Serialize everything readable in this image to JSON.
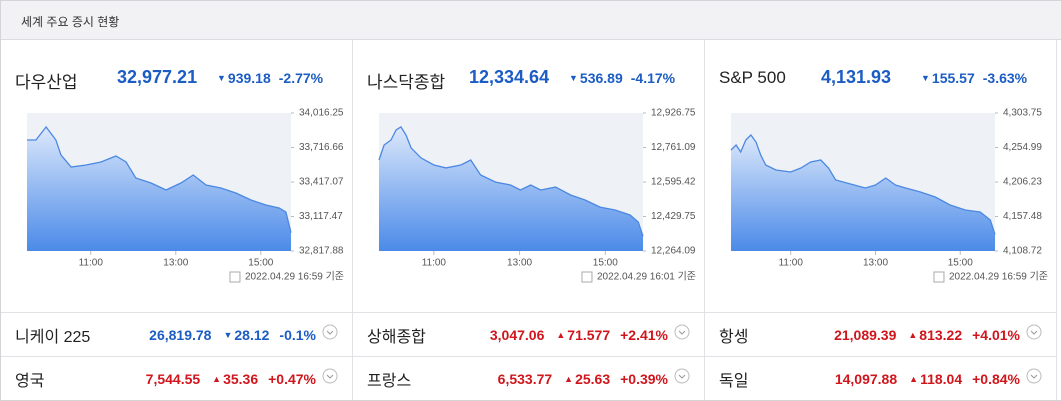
{
  "header": {
    "title": "세계 주요 증시 현황"
  },
  "colors": {
    "up": "#d0161c",
    "down": "#1c5cc5",
    "line": "#4b88e2"
  },
  "panels": [
    {
      "name": "다우산업",
      "value": "32,977.21",
      "change": "939.18",
      "change_pct": "-2.77%",
      "timestamp": "2022.04.29 16:59 기준",
      "chart": {
        "type": "line",
        "x": [
          9.5,
          9.71,
          9.95,
          10.18,
          10.3,
          10.54,
          10.89,
          11.24,
          11.59,
          11.83,
          12.06,
          12.42,
          12.77,
          13.12,
          13.41,
          13.71,
          14.06,
          14.42,
          14.77,
          15.12,
          15.43,
          15.59,
          15.71
        ],
        "values": [
          33782,
          33782,
          33895,
          33782,
          33651,
          33547,
          33565,
          33591,
          33643,
          33591,
          33452,
          33408,
          33348,
          33408,
          33478,
          33391,
          33365,
          33321,
          33261,
          33217,
          33191,
          33156,
          32977
        ],
        "xlim": [
          9.5,
          15.71
        ],
        "ylim": [
          32817.88,
          34016.25
        ],
        "xticks": [
          {
            "value": 11,
            "label": "11:00"
          },
          {
            "value": 13,
            "label": "13:00"
          },
          {
            "value": 15,
            "label": "15:00"
          }
        ],
        "yticks": [
          {
            "value": 34016.25,
            "label": "34,016.25"
          },
          {
            "value": 33716.66,
            "label": "33,716.66"
          },
          {
            "value": 33417.07,
            "label": "33,417.07"
          },
          {
            "value": 33117.47,
            "label": "33,117.47"
          },
          {
            "value": 32817.88,
            "label": "32,817.88"
          }
        ]
      }
    },
    {
      "name": "나스닥종합",
      "value": "12,334.64",
      "change": "536.89",
      "change_pct": "-4.17%",
      "timestamp": "2022.04.29 16:01 기준",
      "chart": {
        "type": "line",
        "x": [
          9.72,
          9.84,
          10.0,
          10.12,
          10.23,
          10.35,
          10.47,
          10.7,
          11.0,
          11.28,
          11.63,
          11.86,
          12.09,
          12.44,
          12.79,
          13.02,
          13.26,
          13.49,
          13.84,
          14.19,
          14.53,
          14.88,
          15.23,
          15.58,
          15.77,
          15.88
        ],
        "values": [
          12701,
          12773,
          12797,
          12845,
          12860,
          12821,
          12759,
          12711,
          12677,
          12663,
          12677,
          12701,
          12629,
          12595,
          12581,
          12557,
          12581,
          12557,
          12571,
          12533,
          12509,
          12475,
          12461,
          12437,
          12403,
          12335
        ],
        "xlim": [
          9.72,
          15.88
        ],
        "ylim": [
          12264.09,
          12926.75
        ],
        "xticks": [
          {
            "value": 11,
            "label": "11:00"
          },
          {
            "value": 13,
            "label": "13:00"
          },
          {
            "value": 15,
            "label": "15:00"
          }
        ],
        "yticks": [
          {
            "value": 12926.75,
            "label": "12,926.75"
          },
          {
            "value": 12761.09,
            "label": "12,761.09"
          },
          {
            "value": 12595.42,
            "label": "12,595.42"
          },
          {
            "value": 12429.75,
            "label": "12,429.75"
          },
          {
            "value": 12264.09,
            "label": "12,264.09"
          }
        ]
      }
    },
    {
      "name": "S&P 500",
      "value": "4,131.93",
      "change": "155.57",
      "change_pct": "-3.63%",
      "timestamp": "2022.04.29 16:59 기준",
      "chart": {
        "type": "line",
        "x": [
          9.59,
          9.71,
          9.82,
          9.94,
          10.06,
          10.18,
          10.29,
          10.41,
          10.65,
          11.0,
          11.24,
          11.47,
          11.71,
          11.89,
          12.06,
          12.41,
          12.76,
          13.0,
          13.24,
          13.47,
          13.71,
          14.06,
          14.41,
          14.76,
          15.12,
          15.47,
          15.71,
          15.82
        ],
        "values": [
          4251.5,
          4258.5,
          4248.6,
          4265.6,
          4272.7,
          4262.8,
          4244.4,
          4230.3,
          4223.2,
          4220.4,
          4226.0,
          4234.5,
          4237.3,
          4226.0,
          4209.1,
          4203.4,
          4197.8,
          4202.0,
          4211.9,
          4202.0,
          4197.8,
          4192.1,
          4185.1,
          4173.8,
          4166.7,
          4163.9,
          4152.6,
          4131.9
        ],
        "xlim": [
          9.59,
          15.82
        ],
        "ylim": [
          4108.72,
          4303.75
        ],
        "xticks": [
          {
            "value": 11,
            "label": "11:00"
          },
          {
            "value": 13,
            "label": "13:00"
          },
          {
            "value": 15,
            "label": "15:00"
          }
        ],
        "yticks": [
          {
            "value": 4303.75,
            "label": "4,303.75"
          },
          {
            "value": 4254.99,
            "label": "4,254.99"
          },
          {
            "value": 4206.23,
            "label": "4,206.23"
          },
          {
            "value": 4157.48,
            "label": "4,157.48"
          },
          {
            "value": 4108.72,
            "label": "4,108.72"
          }
        ]
      }
    }
  ],
  "others": [
    {
      "name": "니케이 225",
      "value": "26,819.78",
      "change": "28.12",
      "change_pct": "-0.1%"
    },
    {
      "name": "상해종합",
      "value": "3,047.06",
      "change": "71.577",
      "change_pct": "+2.41%"
    },
    {
      "name": "항셍",
      "value": "21,089.39",
      "change": "813.22",
      "change_pct": "+4.01%"
    },
    {
      "name": "영국",
      "value": "7,544.55",
      "change": "35.36",
      "change_pct": "+0.47%"
    },
    {
      "name": "프랑스",
      "value": "6,533.77",
      "change": "25.63",
      "change_pct": "+0.39%"
    },
    {
      "name": "독일",
      "value": "14,097.88",
      "change": "118.04",
      "change_pct": "+0.84%"
    }
  ]
}
